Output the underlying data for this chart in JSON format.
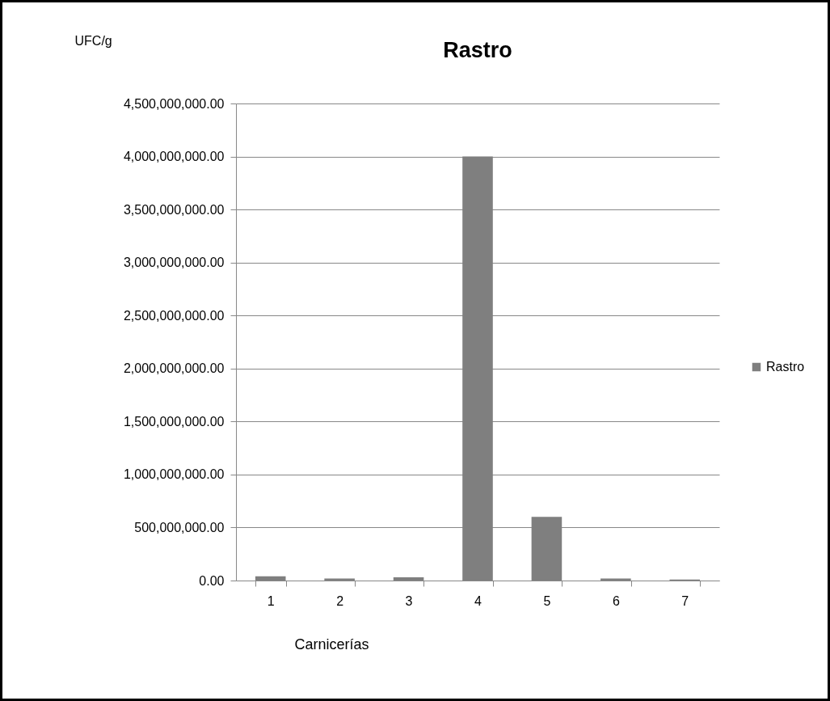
{
  "chart_data": {
    "type": "bar",
    "title": "Rastro",
    "xlabel": "Carnicerías",
    "ylabel": "UFC/g",
    "categories": [
      "1",
      "2",
      "3",
      "4",
      "5",
      "6",
      "7"
    ],
    "series": [
      {
        "name": "Rastro",
        "color": "#7f7f7f",
        "values": [
          40000000,
          20000000,
          30000000,
          4000000000,
          600000000,
          20000000,
          10000000
        ]
      }
    ],
    "ylim": [
      0,
      4500000000
    ],
    "yticks": [
      {
        "value": 0,
        "label": "0.00"
      },
      {
        "value": 500000000,
        "label": "500,000,000.00"
      },
      {
        "value": 1000000000,
        "label": "1,000,000,000.00"
      },
      {
        "value": 1500000000,
        "label": "1,500,000,000.00"
      },
      {
        "value": 2000000000,
        "label": "2,000,000,000.00"
      },
      {
        "value": 2500000000,
        "label": "2,500,000,000.00"
      },
      {
        "value": 3000000000,
        "label": "3,000,000,000.00"
      },
      {
        "value": 3500000000,
        "label": "3,500,000,000.00"
      },
      {
        "value": 4000000000,
        "label": "4,000,000,000.00"
      },
      {
        "value": 4500000000,
        "label": "4,500,000,000.00"
      }
    ],
    "grid": "y",
    "legend": "right"
  }
}
